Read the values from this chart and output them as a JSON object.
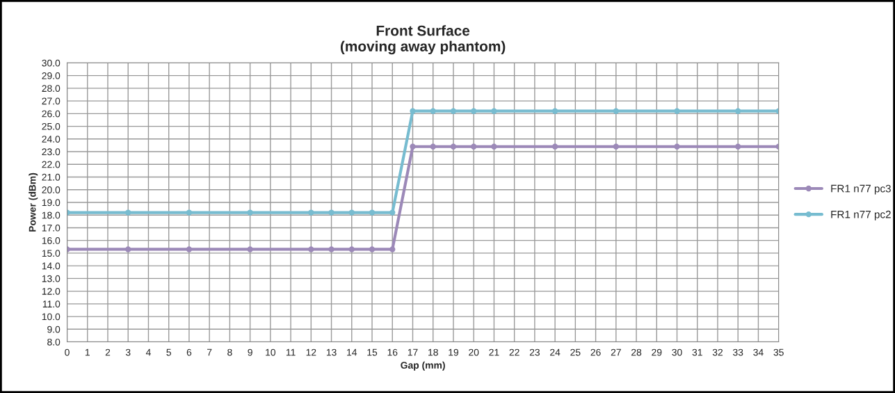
{
  "chart_data": {
    "type": "line",
    "title": "Front Surface\n(moving away phantom)",
    "xlabel": "Gap (mm)",
    "ylabel": "Power (dBm)",
    "x": [
      0,
      3,
      6,
      9,
      12,
      13,
      14,
      15,
      16,
      17,
      18,
      19,
      20,
      21,
      24,
      27,
      30,
      33,
      35
    ],
    "series": [
      {
        "name": "FR1 n77 pc3",
        "color": "#9c89b8",
        "values": [
          15.3,
          15.3,
          15.3,
          15.3,
          15.3,
          15.3,
          15.3,
          15.3,
          15.3,
          23.4,
          23.4,
          23.4,
          23.4,
          23.4,
          23.4,
          23.4,
          23.4,
          23.4,
          23.4
        ]
      },
      {
        "name": "FR1 n77 pc2",
        "color": "#77bcd0",
        "values": [
          18.2,
          18.2,
          18.2,
          18.2,
          18.2,
          18.2,
          18.2,
          18.2,
          18.2,
          26.2,
          26.2,
          26.2,
          26.2,
          26.2,
          26.2,
          26.2,
          26.2,
          26.2,
          26.2
        ]
      }
    ],
    "xlim": [
      0,
      35
    ],
    "xticks": [
      0,
      1,
      2,
      3,
      4,
      5,
      6,
      7,
      8,
      9,
      10,
      11,
      12,
      13,
      14,
      15,
      16,
      17,
      18,
      19,
      20,
      21,
      22,
      23,
      24,
      25,
      26,
      27,
      28,
      29,
      30,
      31,
      32,
      33,
      34,
      35
    ],
    "ylim": [
      8,
      30
    ],
    "yticks": [
      {
        "value": 8,
        "label": "8.0"
      },
      {
        "value": 9,
        "label": "9.0"
      },
      {
        "value": 10,
        "label": "10.0"
      },
      {
        "value": 11,
        "label": "11.0"
      },
      {
        "value": 12,
        "label": "12.0"
      },
      {
        "value": 13,
        "label": "13.0"
      },
      {
        "value": 14,
        "label": "14.0"
      },
      {
        "value": 15,
        "label": "15.0"
      },
      {
        "value": 16,
        "label": "16.0"
      },
      {
        "value": 17,
        "label": "17.0"
      },
      {
        "value": 18,
        "label": "18.0"
      },
      {
        "value": 19,
        "label": "19.0"
      },
      {
        "value": 20,
        "label": "20.0"
      },
      {
        "value": 21,
        "label": "21.0"
      },
      {
        "value": 22,
        "label": "22.0"
      },
      {
        "value": 23,
        "label": "23.0"
      },
      {
        "value": 24,
        "label": "24.0"
      },
      {
        "value": 25,
        "label": "25.0"
      },
      {
        "value": 26,
        "label": "26.0"
      },
      {
        "value": 27,
        "label": "27.0"
      },
      {
        "value": 28,
        "label": "28.0"
      },
      {
        "value": 29,
        "label": "29.0"
      },
      {
        "value": 30,
        "label": "30.0"
      }
    ],
    "grid": true,
    "legend": "right",
    "marker": "circle",
    "line_style": "solid"
  }
}
